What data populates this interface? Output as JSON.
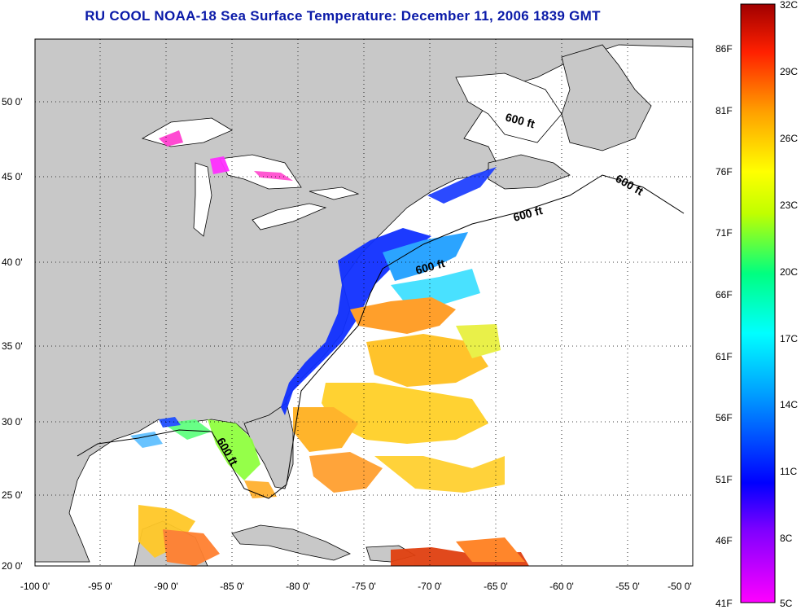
{
  "title": "RU COOL  NOAA-18  Sea Surface Temperature:  December 11, 2006 1839 GMT",
  "map": {
    "lon_labels": [
      "-100 0'",
      "-95 0'",
      "-90 0'",
      "-85 0'",
      "-80 0'",
      "-75 0'",
      "-70 0'",
      "-65 0'",
      "-60 0'",
      "-55 0'",
      "-50 0'"
    ],
    "lat_labels": [
      "50 0'",
      "45 0'",
      "40 0'",
      "35 0'",
      "30 0'",
      "25 0'",
      "20 0'"
    ],
    "depth_contour_label": "600 ft",
    "colors": {
      "land": "#c8c8c8",
      "water": "#ffffff",
      "grid": "#000000"
    }
  },
  "colorbar": {
    "celsius_labels": [
      "32C",
      "29C",
      "26C",
      "23C",
      "20C",
      "17C",
      "14C",
      "11C",
      "8C",
      "5C"
    ],
    "fahrenheit_labels": [
      "86F",
      "81F",
      "76F",
      "71F",
      "66F",
      "61F",
      "56F",
      "51F",
      "46F",
      "41F"
    ],
    "celsius_range": [
      5,
      32
    ]
  }
}
